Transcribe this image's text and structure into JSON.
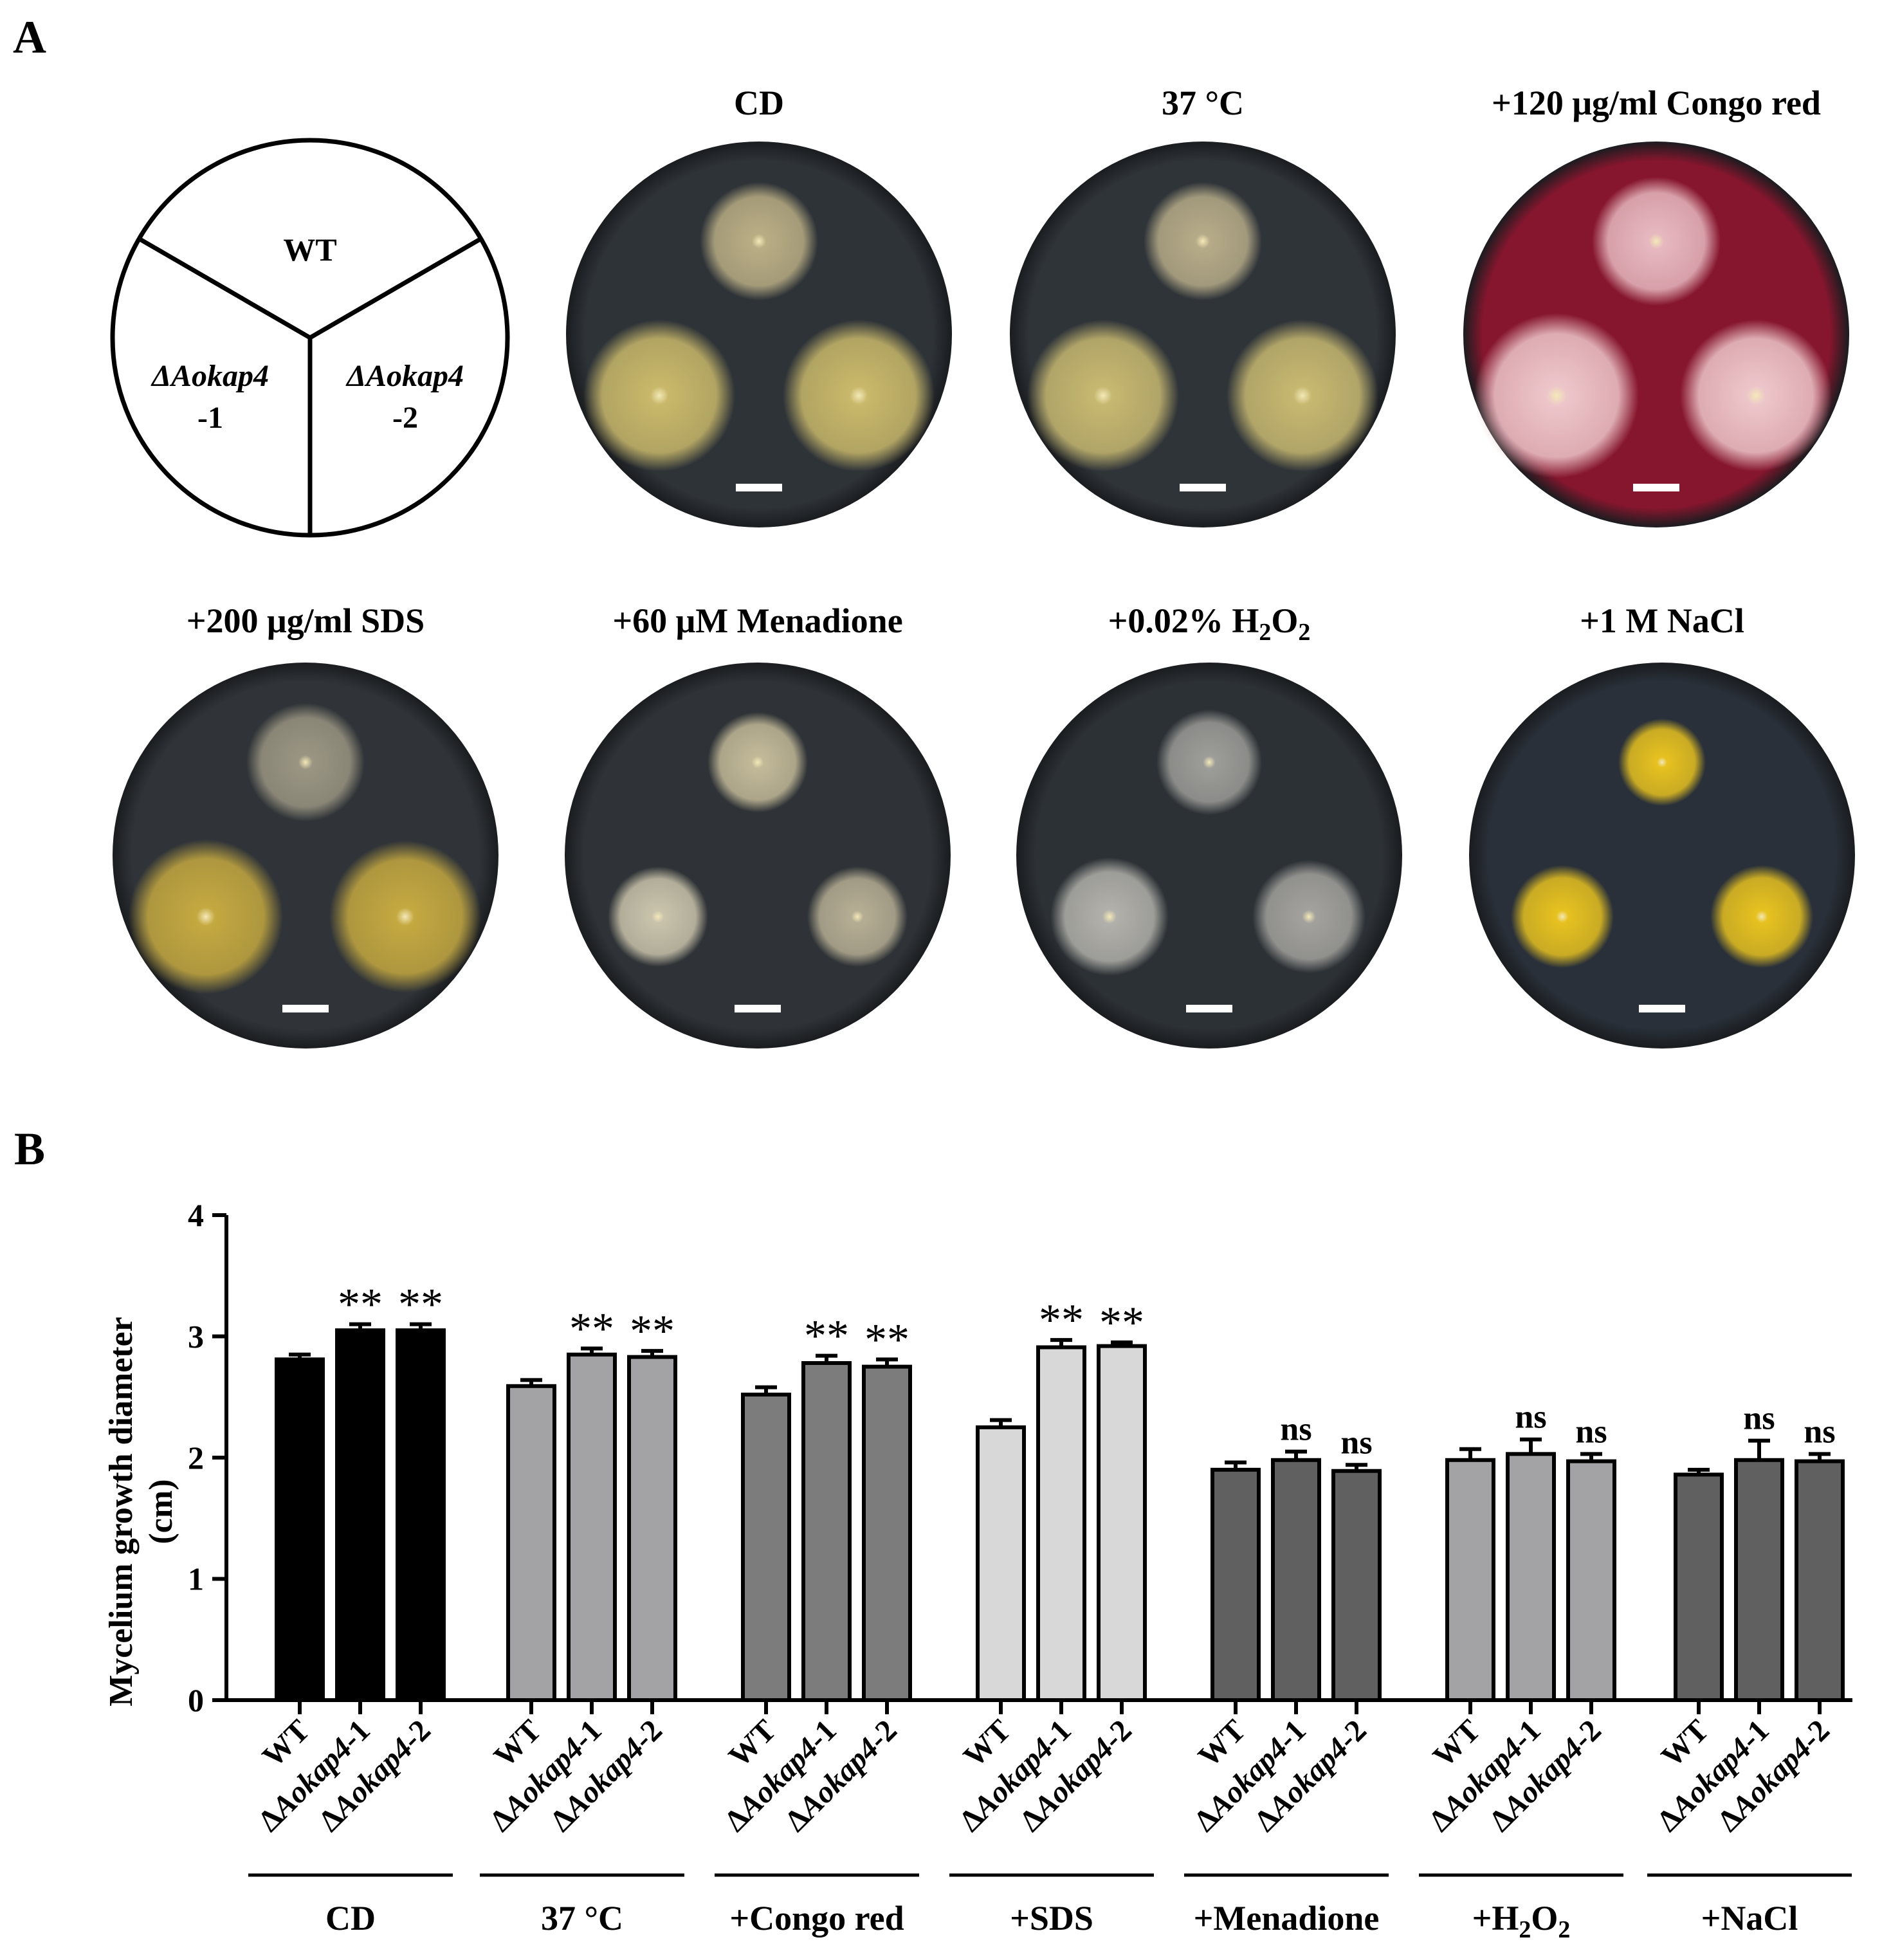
{
  "panel_a": {
    "label": "A",
    "layout": {
      "wt": "WT",
      "mut1_a": "ΔAokap4",
      "mut1_b": "-1",
      "mut2_a": "ΔAokap4",
      "mut2_b": "-2"
    },
    "plates": [
      {
        "title": "CD",
        "agar": "#2e3338",
        "colonies": [
          "#b9ad84",
          "#c9b86a",
          "#c9b86a"
        ]
      },
      {
        "title": "37 °C",
        "agar": "#2f3439",
        "colonies": [
          "#b6ab88",
          "#c7b870",
          "#c7b870"
        ]
      },
      {
        "title": "+120 μg/ml Congo red",
        "agar": "#86162e",
        "colonies": [
          "#e6b8bf",
          "#edc6ca",
          "#edc6ca"
        ]
      },
      {
        "title": "+200 μg/ml SDS",
        "agar": "#303438",
        "colonies": [
          "#9a9582",
          "#c4a840",
          "#c4a840"
        ]
      },
      {
        "title": "+60 μM Menadione",
        "agar": "#2f3337",
        "colonies": [
          "#c2b998",
          "#c9c3ab",
          "#b5ad93"
        ]
      },
      {
        "title": "+0.02% H2O2",
        "agar": "#2c3135",
        "colonies": [
          "#9c9c98",
          "#b1b0aa",
          "#a2a19d"
        ]
      },
      {
        "title": "+1 M NaCl",
        "agar": "#293039",
        "colonies": [
          "#e6c120",
          "#e6c120",
          "#e6c120"
        ]
      }
    ]
  },
  "panel_b": {
    "label": "B",
    "ylabel_line1": "Mycelium growth diameter",
    "ylabel_line2": "(cm)",
    "sub": "2"
  },
  "chart_data": {
    "type": "bar",
    "ylabel": "Mycelium growth diameter (cm)",
    "ylim": [
      0,
      4
    ],
    "yticks": [
      0,
      1,
      2,
      3,
      4
    ],
    "strains": [
      "WT",
      "ΔAokap4-1",
      "ΔAokap4-2"
    ],
    "groups": [
      {
        "name": "CD",
        "color": "#000000",
        "values": [
          2.81,
          3.05,
          3.05
        ],
        "errors": [
          0.04,
          0.05,
          0.05
        ],
        "sig": [
          "",
          "**",
          "**"
        ]
      },
      {
        "name": "37 °C",
        "color": "#a3a3a6",
        "values": [
          2.59,
          2.85,
          2.83
        ],
        "errors": [
          0.05,
          0.05,
          0.05
        ],
        "sig": [
          "",
          "**",
          "**"
        ]
      },
      {
        "name": "+Congo red",
        "color": "#7c7c7d",
        "values": [
          2.52,
          2.78,
          2.75
        ],
        "errors": [
          0.06,
          0.06,
          0.06
        ],
        "sig": [
          "",
          "**",
          "**"
        ]
      },
      {
        "name": "+SDS",
        "color": "#d8d8d8",
        "values": [
          2.25,
          2.91,
          2.92
        ],
        "errors": [
          0.06,
          0.06,
          0.03
        ],
        "sig": [
          "",
          "**",
          "**"
        ]
      },
      {
        "name": "+Menadione",
        "color": "#606061",
        "values": [
          1.9,
          1.98,
          1.89
        ],
        "errors": [
          0.06,
          0.07,
          0.05
        ],
        "sig": [
          "",
          "ns",
          "ns"
        ]
      },
      {
        "name": "+H2O2",
        "color": "#a3a3a6",
        "values": [
          1.98,
          2.03,
          1.97
        ],
        "errors": [
          0.09,
          0.12,
          0.06
        ],
        "sig": [
          "",
          "ns",
          "ns"
        ]
      },
      {
        "name": "+NaCl",
        "color": "#606061",
        "values": [
          1.86,
          1.98,
          1.97
        ],
        "errors": [
          0.04,
          0.16,
          0.06
        ],
        "sig": [
          "",
          "ns",
          "ns"
        ]
      }
    ]
  }
}
